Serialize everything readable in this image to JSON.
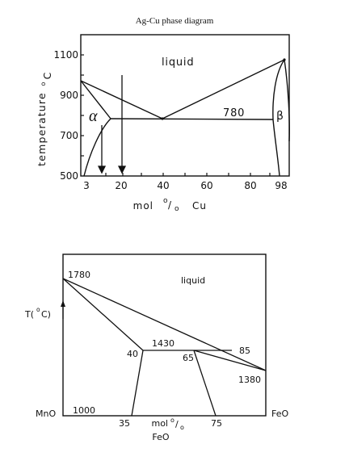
{
  "title": "Ag-Cu phase diagram",
  "diagram1": {
    "y_axis_label": "temperature",
    "y_unit": "°C",
    "y_unit_super": "o",
    "y_unit_letter": "C",
    "x_axis_label": "mol %  Cu",
    "x_label_mol": "mol",
    "x_label_pct_o1": "o",
    "x_label_pct_slash": "/",
    "x_label_pct_o2": "o",
    "x_label_element": "Cu",
    "y_ticks": [
      "500",
      "700",
      "900",
      "1100"
    ],
    "x_ticks": [
      "3",
      "20",
      "40",
      "60",
      "80",
      "98"
    ],
    "label_liquid": "liquid",
    "label_eutectic_temp": "780",
    "label_alpha": "α",
    "label_beta": "β"
  },
  "diagram2": {
    "y_axis_label": "T(°C)",
    "y_label_t": "T(",
    "y_label_super": "o",
    "y_label_rest": "C)",
    "x_axis_label": "mol %",
    "x_label_mol": "mol",
    "x_label_pct_o1": "o",
    "x_label_pct_slash": "/",
    "x_label_pct_o2": "o",
    "x_label_element": "FeO",
    "left_component": "MnO",
    "right_component": "FeO",
    "label_liquid": "liquid",
    "label_1780": "1780",
    "label_1430": "1430",
    "label_1380": "1380",
    "label_1000": "1000",
    "label_40": "40",
    "label_65": "65",
    "label_85": "85",
    "label_35": "35",
    "label_75": "75"
  }
}
